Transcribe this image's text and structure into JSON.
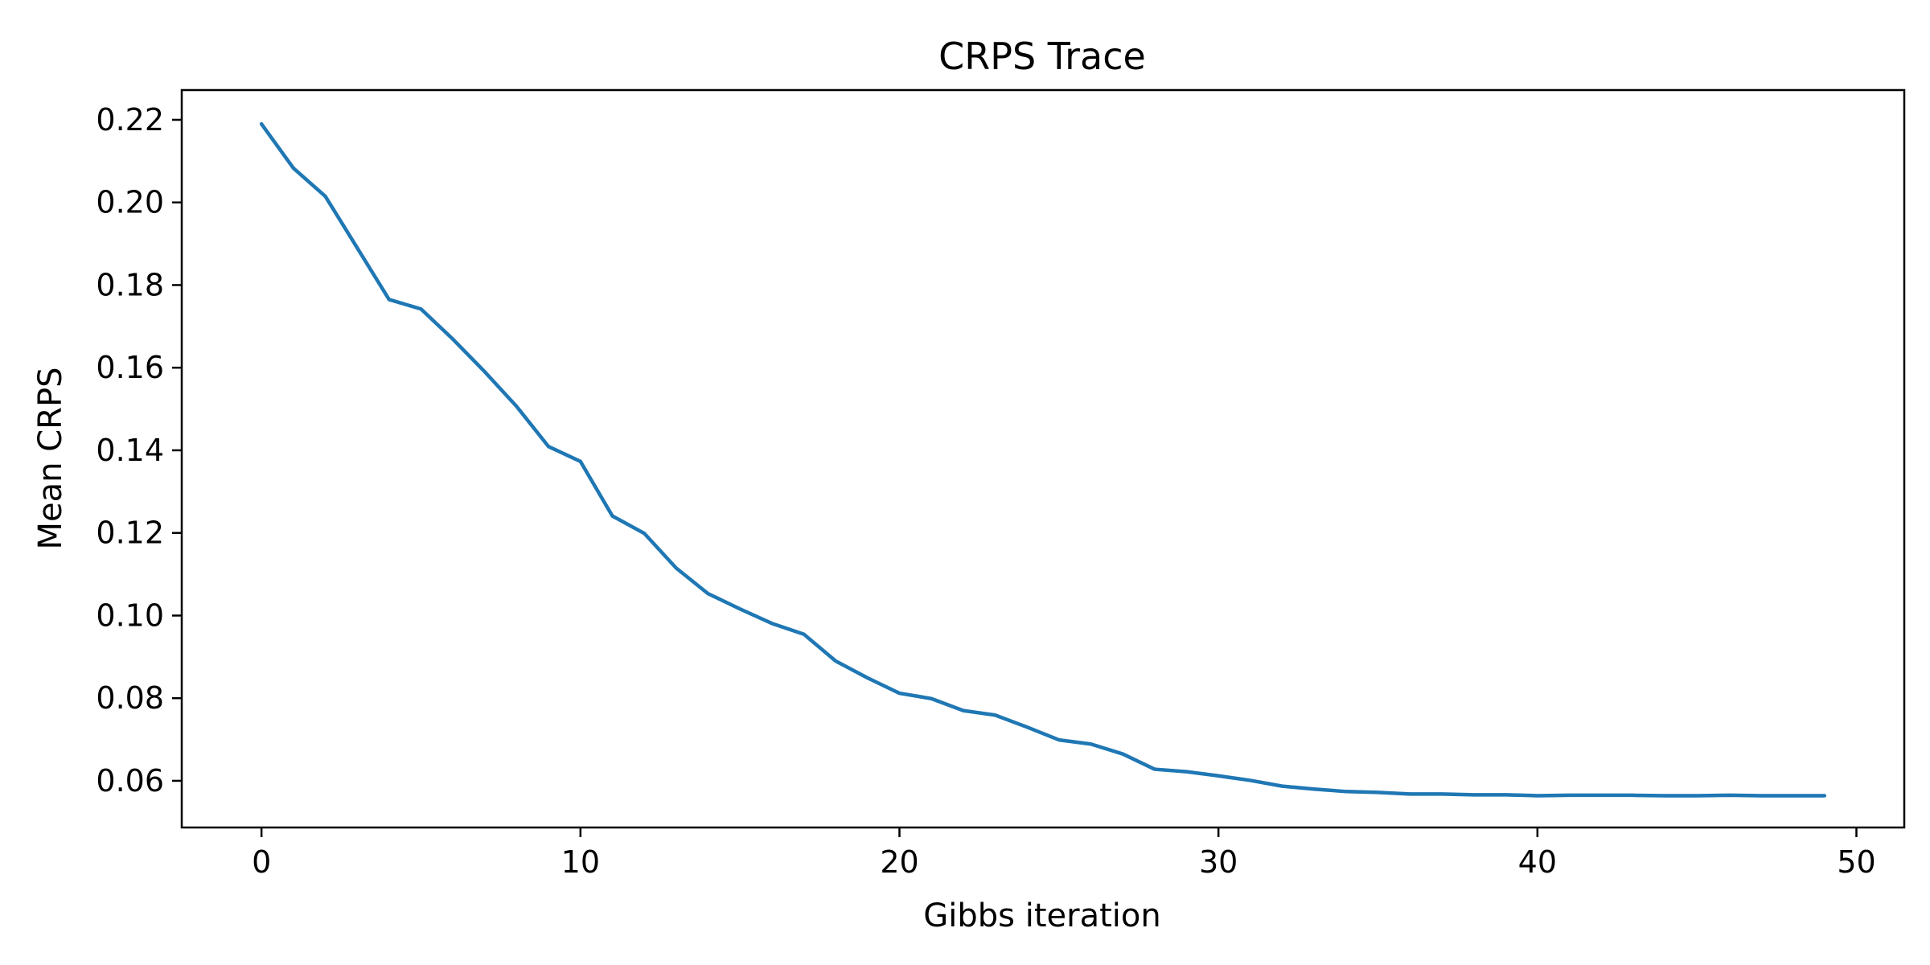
{
  "chart_data": {
    "type": "line",
    "title": "CRPS Trace",
    "xlabel": "Gibbs iteration",
    "ylabel": "Mean CRPS",
    "xlim": [
      -2.5,
      51.5
    ],
    "ylim": [
      0.0487,
      0.2272
    ],
    "xticks": [
      0,
      10,
      20,
      30,
      40,
      50
    ],
    "xtick_labels": [
      "0",
      "10",
      "20",
      "30",
      "40",
      "50"
    ],
    "yticks": [
      0.06,
      0.08,
      0.1,
      0.12,
      0.14,
      0.16,
      0.18,
      0.2,
      0.22
    ],
    "ytick_labels": [
      "0.06",
      "0.08",
      "0.10",
      "0.12",
      "0.14",
      "0.16",
      "0.18",
      "0.20",
      "0.22"
    ],
    "grid": false,
    "series": [
      {
        "color": "#1f77b4",
        "x": [
          0,
          1,
          2,
          3,
          4,
          5,
          6,
          7,
          8,
          9,
          10,
          11,
          12,
          13,
          14,
          15,
          16,
          17,
          18,
          19,
          20,
          21,
          22,
          23,
          24,
          25,
          26,
          27,
          28,
          29,
          30,
          31,
          32,
          33,
          34,
          35,
          36,
          37,
          38,
          39,
          40,
          41,
          42,
          43,
          44,
          45,
          46,
          47,
          48,
          49
        ],
        "y": [
          0.219,
          0.2083,
          0.2015,
          0.189,
          0.1765,
          0.1742,
          0.1669,
          0.159,
          0.1506,
          0.1409,
          0.1373,
          0.1241,
          0.1199,
          0.1115,
          0.1053,
          0.1016,
          0.0981,
          0.0955,
          0.089,
          0.0849,
          0.0812,
          0.0799,
          0.077,
          0.0759,
          0.073,
          0.0699,
          0.0689,
          0.0665,
          0.0628,
          0.0622,
          0.0612,
          0.0601,
          0.0587,
          0.058,
          0.0574,
          0.0572,
          0.0568,
          0.0568,
          0.0566,
          0.0566,
          0.0564,
          0.0565,
          0.0565,
          0.0565,
          0.0564,
          0.0564,
          0.0565,
          0.0564,
          0.0564,
          0.0564
        ]
      }
    ]
  }
}
